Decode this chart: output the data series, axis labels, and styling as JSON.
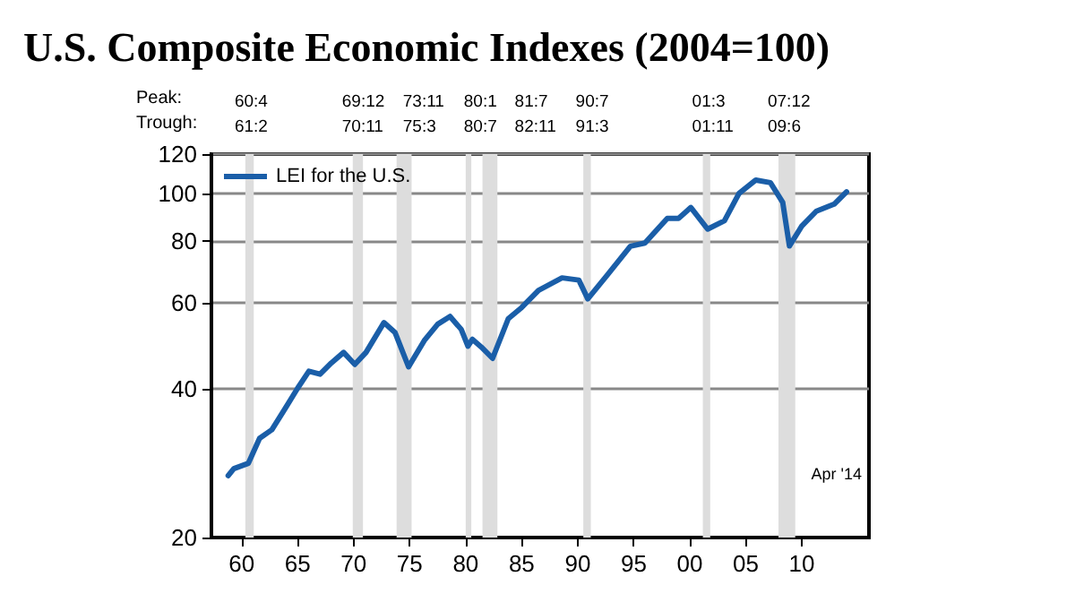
{
  "chart_data": {
    "type": "line",
    "title": "U.S. Composite Economic Indexes (2004=100)",
    "x": [
      1958.8,
      1959.3,
      1960.6,
      1961.6,
      1962.7,
      1963.9,
      1965,
      1966,
      1967,
      1968,
      1969.1,
      1970.1,
      1971.1,
      1972.7,
      1973.7,
      1974.9,
      1976.3,
      1977.5,
      1978.6,
      1979.6,
      1980.2,
      1980.6,
      1981.4,
      1982.4,
      1983.8,
      1985,
      1986.5,
      1988.6,
      1990.1,
      1990.9,
      1992.6,
      1994.7,
      1996,
      1998,
      1999,
      2000.1,
      2001.6,
      2003.1,
      2004.4,
      2005.9,
      2007.2,
      2008.3,
      2008.9,
      2010,
      2011.3,
      2012.9,
      2014
    ],
    "series": [
      {
        "name": "LEI for the U.S.",
        "color": "#1a5ea8",
        "values": [
          26.7,
          27.6,
          28.3,
          31.8,
          33.1,
          36.6,
          40.2,
          43.5,
          42.9,
          45.2,
          47.5,
          44.9,
          47.5,
          54.6,
          52.1,
          44.4,
          50.2,
          54.2,
          56.2,
          52.9,
          48.9,
          50.5,
          48.7,
          46.2,
          55.6,
          58.6,
          63.5,
          67.3,
          66.6,
          61,
          68,
          78,
          79.2,
          88.9,
          88.9,
          93.5,
          84.5,
          87.9,
          99.9,
          106.3,
          105,
          95.8,
          78.1,
          85.7,
          91.9,
          95,
          100.6
        ]
      }
    ],
    "log": "y",
    "xlim": [
      1957.3,
      2016
    ],
    "ylim": [
      20,
      120
    ],
    "xticks": [
      {
        "value": 1960,
        "label": "60"
      },
      {
        "value": 1965,
        "label": "65"
      },
      {
        "value": 1970,
        "label": "70"
      },
      {
        "value": 1975,
        "label": "75"
      },
      {
        "value": 1980,
        "label": "80"
      },
      {
        "value": 1985,
        "label": "85"
      },
      {
        "value": 1990,
        "label": "90"
      },
      {
        "value": 1995,
        "label": "95"
      },
      {
        "value": 2000,
        "label": "00"
      },
      {
        "value": 2005,
        "label": "05"
      },
      {
        "value": 2010,
        "label": "10"
      }
    ],
    "yticks": [
      20,
      40,
      60,
      80,
      100,
      120
    ],
    "grid": "y",
    "legend": "top left",
    "line_style": "solid",
    "marker": "none",
    "bands": [
      {
        "axis": "x",
        "from": 1960.33,
        "to": 1961.08,
        "label": "60:4\n61:2",
        "color": "#dddddd"
      },
      {
        "axis": "x",
        "from": 1969.92,
        "to": 1970.83,
        "label": "69:12\n70:11",
        "color": "#dddddd"
      },
      {
        "axis": "x",
        "from": 1973.83,
        "to": 1975.17,
        "label": "73:11\n75:3",
        "color": "#dddddd"
      },
      {
        "axis": "x",
        "from": 1980,
        "to": 1980.5,
        "label": "80:1\n80:7",
        "color": "#dddddd"
      },
      {
        "axis": "x",
        "from": 1981.5,
        "to": 1982.83,
        "label": "81:7\n82:11",
        "color": "#dddddd"
      },
      {
        "axis": "x",
        "from": 1990.5,
        "to": 1991.17,
        "label": "90:7\n91:3",
        "color": "#dddddd"
      },
      {
        "axis": "x",
        "from": 2001.17,
        "to": 2001.83,
        "label": "01:3\n01:11",
        "color": "#dddddd"
      },
      {
        "axis": "x",
        "from": 2007.92,
        "to": 2009.42,
        "label": "07:12\n09:6",
        "color": "#dddddd"
      }
    ],
    "annotations": [
      "Peak:",
      "Trough:",
      "Apr '14"
    ]
  }
}
